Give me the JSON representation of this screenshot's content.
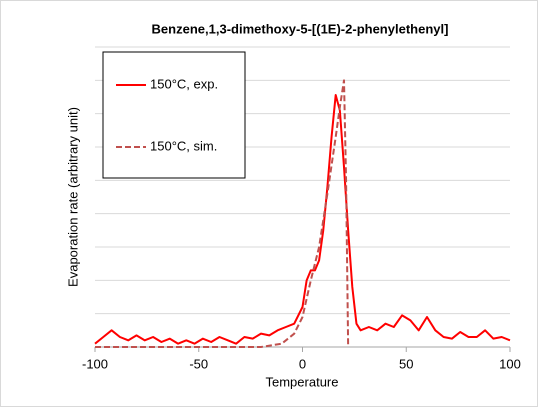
{
  "chart_data": {
    "type": "line",
    "title": "Benzene,1,3-dimethoxy-5-[(1E)-2-phenylethenyl]",
    "x_label": "Temperature",
    "y_label": "Evaporation rate (arbitrary unit)",
    "xlim": [
      -100,
      100
    ],
    "xticks": [
      -100,
      -50,
      0,
      50,
      100
    ],
    "ylim": [
      0,
      9
    ],
    "yticks": [
      0,
      1,
      2,
      3,
      4,
      5,
      6,
      7,
      8,
      9
    ],
    "grid": true,
    "legend": "upper left",
    "series": [
      {
        "name": "150°C, exp.",
        "color": "#ff0000",
        "dash": false,
        "x": [
          -100,
          -96,
          -92,
          -88,
          -84,
          -80,
          -76,
          -72,
          -68,
          -64,
          -60,
          -56,
          -52,
          -48,
          -44,
          -40,
          -36,
          -32,
          -28,
          -24,
          -20,
          -16,
          -12,
          -8,
          -4,
          0,
          2,
          4,
          6,
          8,
          10,
          12,
          14,
          16,
          18,
          20,
          22,
          24,
          26,
          28,
          32,
          36,
          40,
          44,
          48,
          52,
          56,
          60,
          64,
          68,
          72,
          76,
          80,
          84,
          88,
          92,
          96,
          100
        ],
        "values": [
          0.1,
          0.3,
          0.5,
          0.3,
          0.2,
          0.35,
          0.2,
          0.3,
          0.15,
          0.25,
          0.1,
          0.2,
          0.1,
          0.25,
          0.15,
          0.3,
          0.2,
          0.1,
          0.3,
          0.25,
          0.4,
          0.35,
          0.5,
          0.6,
          0.7,
          1.2,
          2.0,
          2.3,
          2.3,
          2.6,
          3.5,
          4.8,
          6.3,
          7.56,
          7.1,
          5.4,
          3.5,
          1.8,
          0.7,
          0.5,
          0.6,
          0.5,
          0.7,
          0.6,
          0.95,
          0.8,
          0.5,
          0.9,
          0.5,
          0.3,
          0.25,
          0.45,
          0.3,
          0.3,
          0.5,
          0.25,
          0.3,
          0.2
        ]
      },
      {
        "name": "150°C, sim.",
        "color": "#c0504d",
        "dash": true,
        "x": [
          -100,
          -20,
          -10,
          -4,
          0,
          4,
          8,
          12,
          16,
          18,
          20,
          21,
          22
        ],
        "values": [
          0,
          0,
          0.1,
          0.4,
          0.9,
          2.0,
          3.0,
          4.6,
          6.3,
          7.2,
          8.0,
          5.0,
          0
        ]
      }
    ]
  }
}
